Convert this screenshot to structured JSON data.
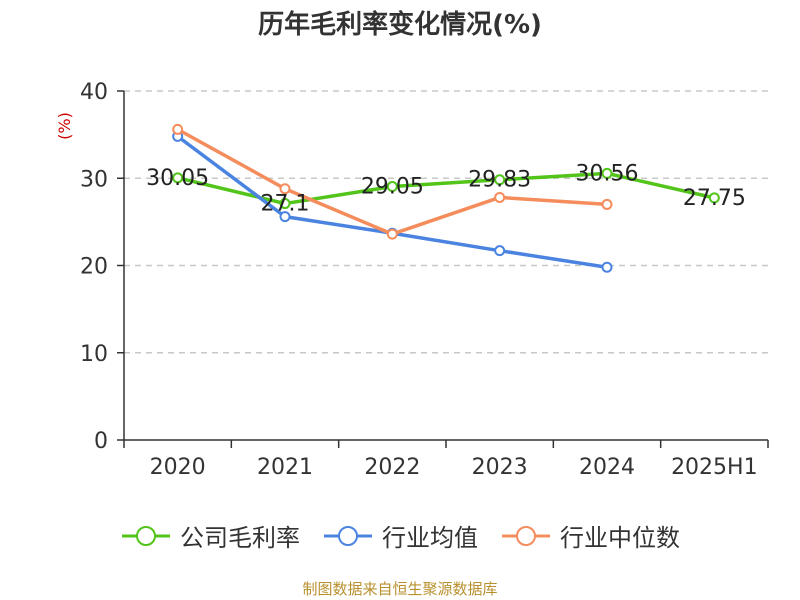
{
  "chart_data": {
    "type": "line",
    "title": "历年毛利率变化情况(%)",
    "ylabel": "(%)",
    "categories": [
      "2020",
      "2021",
      "2022",
      "2023",
      "2024",
      "2025H1"
    ],
    "ylim": [
      0,
      40
    ],
    "yticks": [
      0,
      10,
      20,
      30,
      40
    ],
    "grid": true,
    "legend_position": "bottom",
    "series": [
      {
        "name": "公司毛利率",
        "color": "#52c41a",
        "values": [
          30.05,
          27.1,
          29.05,
          29.83,
          30.56,
          27.75
        ],
        "labels": [
          "30.05",
          "27.1",
          "29.05",
          "29.83",
          "30.56",
          "27.75"
        ]
      },
      {
        "name": "行业均值",
        "color": "#4a84e0",
        "values": [
          34.8,
          25.6,
          23.7,
          21.7,
          19.8,
          null
        ]
      },
      {
        "name": "行业中位数",
        "color": "#f48c5c",
        "values": [
          35.6,
          28.8,
          23.6,
          27.8,
          27.0,
          null
        ]
      }
    ]
  },
  "source_note": "制图数据来自恒生聚源数据库",
  "colors": {
    "axis": "#333333",
    "grid": "#c8c8c8",
    "ylabel": "#cc0000",
    "source": "#b8902e"
  }
}
